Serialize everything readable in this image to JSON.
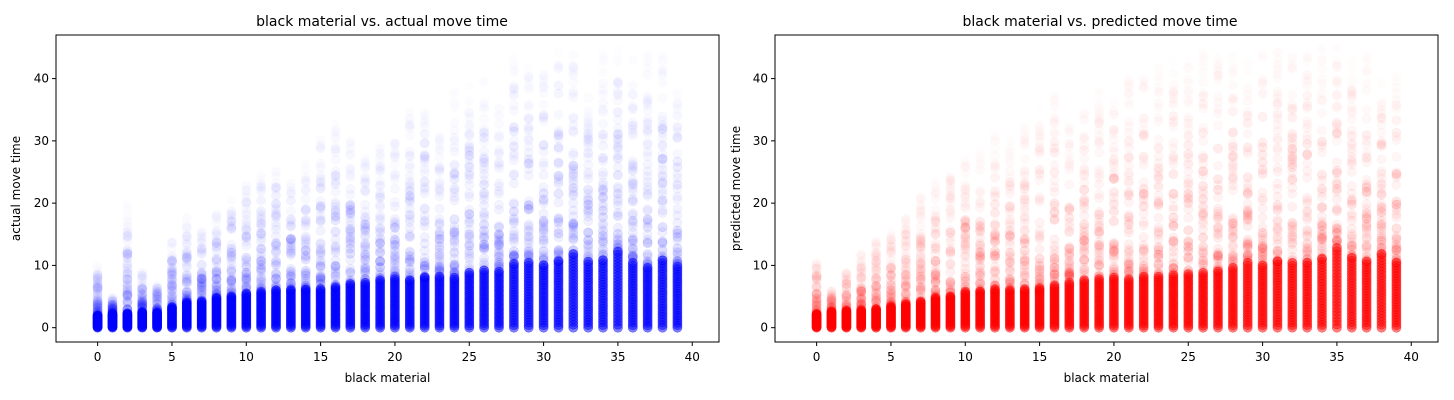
{
  "chart_data": [
    {
      "type": "scatter",
      "title": "black material vs. actual move time",
      "xlabel": "black material",
      "ylabel": "actual move time",
      "xlim": [
        -2.8,
        41.8
      ],
      "ylim": [
        -2.3,
        47.0
      ],
      "xticks": [
        0,
        5,
        10,
        15,
        20,
        25,
        30,
        35,
        40
      ],
      "yticks": [
        0,
        10,
        20,
        30,
        40
      ],
      "grid": false,
      "color": "#0000ff",
      "x": [
        0,
        1,
        2,
        3,
        4,
        5,
        6,
        7,
        8,
        9,
        10,
        11,
        12,
        13,
        14,
        15,
        16,
        17,
        18,
        19,
        20,
        21,
        22,
        23,
        24,
        25,
        26,
        27,
        28,
        29,
        30,
        31,
        32,
        33,
        34,
        35,
        36,
        37,
        38,
        39
      ],
      "dense_top": [
        2.0,
        2.2,
        2.3,
        2.5,
        2.4,
        3.3,
        4.0,
        4.2,
        4.8,
        5.0,
        5.5,
        5.8,
        6.0,
        6.0,
        6.1,
        6.2,
        6.5,
        7.0,
        7.2,
        7.6,
        7.8,
        7.6,
        8.0,
        8.2,
        8.0,
        8.8,
        9.2,
        9.0,
        10.2,
        10.4,
        10.0,
        10.6,
        11.8,
        10.6,
        10.8,
        12.2,
        10.4,
        9.6,
        10.8,
        9.8
      ],
      "max_y": [
        10,
        5,
        20,
        9,
        7,
        14,
        18,
        16,
        19,
        21,
        23,
        25,
        26,
        25,
        27,
        32,
        33,
        31,
        29,
        30,
        31,
        36,
        37,
        31,
        38,
        39,
        40,
        36,
        44,
        42,
        42,
        45,
        45,
        38,
        44,
        45,
        44,
        44,
        44,
        38
      ]
    },
    {
      "type": "scatter",
      "title": "black material vs. predicted move time",
      "xlabel": "black material",
      "ylabel": "predicted move time",
      "xlim": [
        -2.8,
        41.8
      ],
      "ylim": [
        -2.3,
        47.0
      ],
      "xticks": [
        0,
        5,
        10,
        15,
        20,
        25,
        30,
        35,
        40
      ],
      "yticks": [
        0,
        10,
        20,
        30,
        40
      ],
      "grid": false,
      "color": "#ff0000",
      "x": [
        0,
        1,
        2,
        3,
        4,
        5,
        6,
        7,
        8,
        9,
        10,
        11,
        12,
        13,
        14,
        15,
        16,
        17,
        18,
        19,
        20,
        21,
        22,
        23,
        24,
        25,
        26,
        27,
        28,
        29,
        30,
        31,
        32,
        33,
        34,
        35,
        36,
        37,
        38,
        39
      ],
      "dense_top": [
        2.2,
        2.5,
        2.6,
        2.8,
        3.0,
        3.4,
        3.8,
        4.2,
        4.8,
        5.0,
        5.8,
        5.8,
        6.2,
        6.0,
        6.2,
        6.2,
        6.8,
        7.2,
        7.6,
        7.8,
        8.0,
        7.8,
        8.2,
        8.2,
        8.4,
        8.6,
        8.8,
        9.0,
        9.6,
        10.4,
        10.0,
        10.6,
        10.4,
        10.4,
        11.0,
        12.8,
        11.2,
        10.6,
        11.8,
        10.4
      ],
      "max_y": [
        11,
        6,
        9,
        12,
        14,
        16,
        18,
        22,
        24,
        25,
        27,
        29,
        31,
        31,
        33,
        35,
        38,
        34,
        36,
        38,
        38,
        41,
        40,
        42,
        43,
        43,
        45,
        45,
        45,
        44,
        44,
        45,
        46,
        45,
        45,
        45,
        44,
        44,
        42,
        42
      ]
    }
  ]
}
